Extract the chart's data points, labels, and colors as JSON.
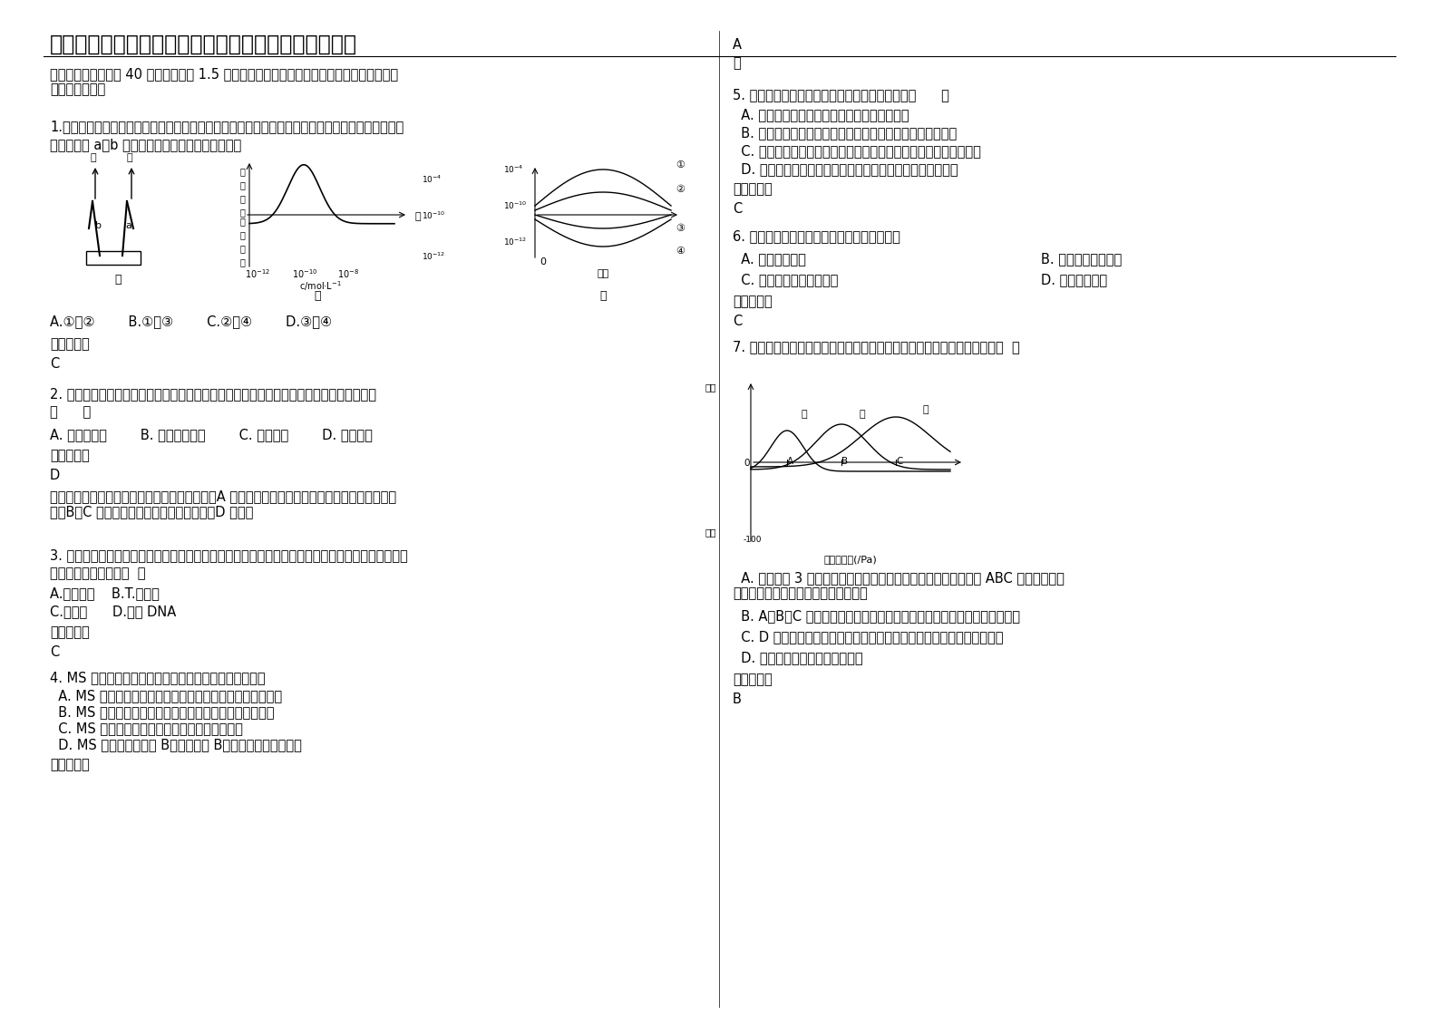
{
  "title": "四川省资阳市努力中学高二生物下学期期末试卷含解析",
  "background_color": "#ffffff",
  "text_color": "#000000",
  "section1_header": "一、选择题（本题共 40 小题，每小题 1.5 分。在每小题给出的四个选项中，只有一项是符合\n题目要求的。）",
  "q1_text": "1.图甲表示燕麦胚芽鞘在单侧光照射下的生长情况，图乙表示胚芽鞘对不同浓度生长素的不同反应，\n则丙中表示 a、b 两点生长素浓度变化的曲线分别是",
  "q1_options": "A.①和②        B.①和③        C.②和④        D.③和④",
  "q1_ref": "参考答案：",
  "q1_ans": "C",
  "q2_text": "2. 雅典奥运会期间，许多运动员服用了固醇类药物而被取消成绩。他们服用的药物可能属于\n（      ）",
  "q2_options": "A. 甲状腺激素        B. 促甲状腺激素        C. 生长激素        D. 雄性激素",
  "q2_ref": "参考答案：",
  "q2_ans": "D",
  "q2_explanation": "甲状腺激素属于氨基酸的衍生物，不是固醇类，A 错误；促甲状腺激素和生长激素都是蛋白质类物\n质，B、C 错误；雄性激素属于固醇类物质，D 正确。",
  "q3_text": "3. 人的糖蛋白必须经过内质网和高尔基体进一步加工合成，通过基因工程技术，可以使人的糖蛋白得\n以表达的受体细胞是（  ）",
  "q3_options_a": "A.大肠杆菌    B.T.噬菌体",
  "q3_options_b": "C.酵母菌      D.质粒 DNA",
  "q3_ref": "参考答案：",
  "q3_ans": "C",
  "q4_text": "4. MS 培养基和培养微生物所配制的培养基的主要区别是",
  "q4_options_a": "  A. MS 培养基一般含植物激素，微生物培养基不含植物激素",
  "q4_options_b": "  B. MS 培养基需要氨基酸，微生物培养基不含各种氨基酸",
  "q4_options_c": "  C. MS 培养基需要碳源，微生物培养基不含碳源",
  "q4_options_d": "  D. MS 培养基含维生素 B，和维生素 B，而微生物培养基不含",
  "q4_ref": "参考答案：",
  "col2_q5_pre": "A\n略",
  "col2_q5_text": "5. 下列关于转基因生物安全性的叙述，错误的是（      ）",
  "col2_q5_options_a": "  A. 种植基因作物有可能与传统农业种植区隔离",
  "col2_q5_options_b": "  B. 转基因作物被动物食用后，目的基因会转入动物体细胞中",
  "col2_q5_options_c": "  C. 种植转基因植物有可能因基因扩散而影响野生植物的遗传多样性",
  "col2_q5_options_d": "  D. 环境安全是指转基因生物可能会对环境造成新污染和破坏",
  "col2_q5_ref": "参考答案：",
  "col2_q5_ans": "C",
  "col2_q6_text": "6. 下面哪一项生物技术与细胞全能性是无关的",
  "col2_q6_options_a": "  A. 克隆羊的培育",
  "col2_q6_options_b": "B. 干细胞培育出器官",
  "col2_q6_options_c": "  C. 三倍体无籽西瓜的培育",
  "col2_q6_options_d": "D. 胚胎分割移植",
  "col2_q6_ref": "参考答案：",
  "col2_q6_ans": "C",
  "col2_q7_text": "7. 下图表示生长素浓度对植物根、芽和茎生长的影响，此图给你的信息是（  ）",
  "col2_q7_options_a": "  A. 生长素对 3 种器官作用都具有两重性，从图中三种器官对应的 ABC 三点可知，生\n长素对不同器官起抑制作用的浓度不同",
  "col2_q7_options_b": "  B. A、B、C 点对应的生长素浓度分别是促进根、芽、茎生长的最适宜浓度",
  "col2_q7_options_c": "  C. D 点对应的生长素浓度对茎的生长具有促进作用，却抑制了芽的生长",
  "col2_q7_options_d": "  D. 茎对生长素的敏感程度高于根",
  "col2_q7_ref": "参考答案：",
  "col2_q7_ans": "B"
}
